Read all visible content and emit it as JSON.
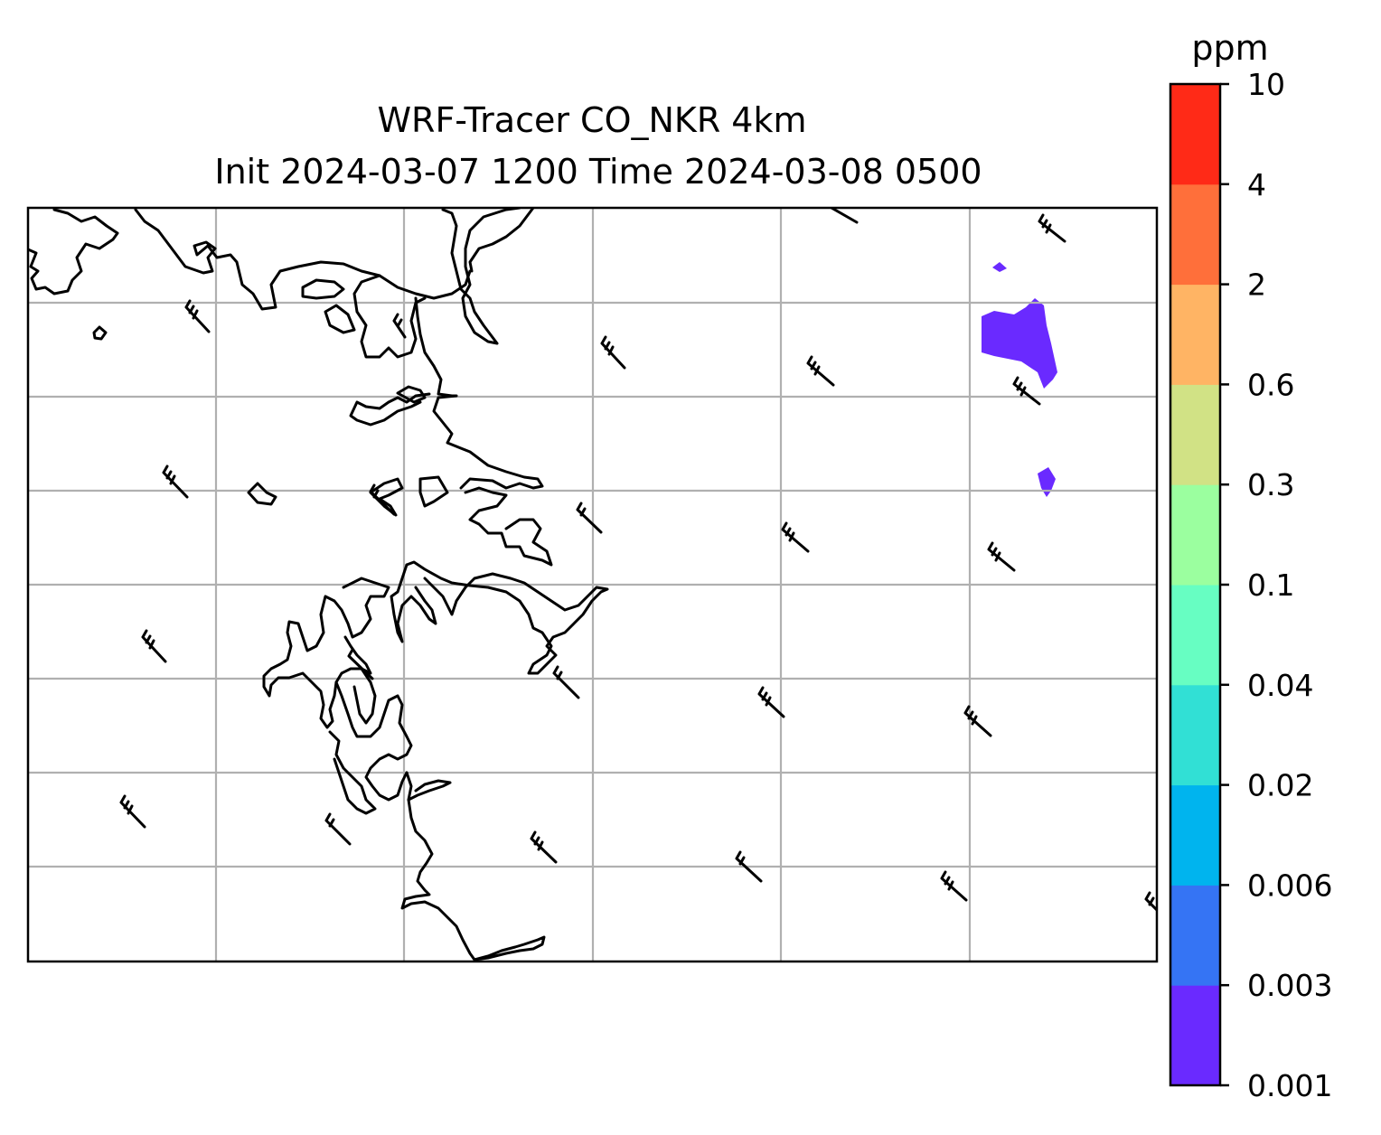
{
  "chart_data": {
    "type": "map",
    "title_line1": "WRF-Tracer CO_NKR 4km",
    "title_line2": "Init 2024-03-07 1200 Time 2024-03-08 0500",
    "colorbar": {
      "unit": "ppm",
      "levels": [
        "0.001",
        "0.003",
        "0.006",
        "0.02",
        "0.04",
        "0.1",
        "0.3",
        "0.6",
        "2",
        "4",
        "10"
      ],
      "colors": [
        "#6a2aff",
        "#3574f4",
        "#00b4ee",
        "#31e0d5",
        "#67fec2",
        "#9bff9f",
        "#d1e285",
        "#ffb464",
        "#ff6f3a",
        "#ff2a17"
      ]
    },
    "gridlines": true,
    "plume_color": "#6a2aff"
  }
}
